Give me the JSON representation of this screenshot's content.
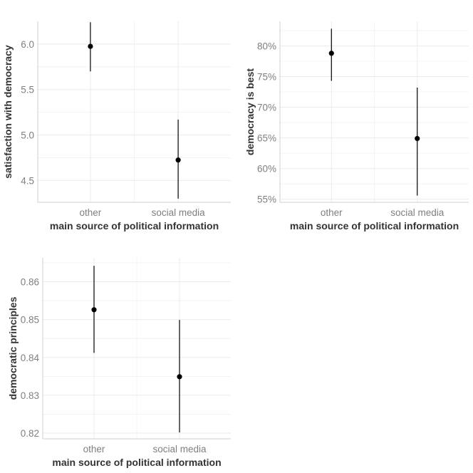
{
  "chart_data": [
    {
      "type": "scatter",
      "subtype": "pointrange",
      "categories": [
        "other",
        "social media"
      ],
      "points": [
        {
          "x": "other",
          "y": 5.975,
          "lower": 5.7,
          "upper": 6.24
        },
        {
          "x": "social media",
          "y": 4.725,
          "lower": 4.3,
          "upper": 5.17
        }
      ],
      "xlabel": "main source of political information",
      "ylabel": "satisfaction with democracy",
      "ylim": [
        4.26,
        6.25
      ],
      "yticks": [
        4.5,
        5.0,
        5.5,
        6.0
      ],
      "ytick_labels": [
        "4.5",
        "5.0",
        "5.5",
        "6.0"
      ],
      "grid": true
    },
    {
      "type": "scatter",
      "subtype": "pointrange",
      "categories": [
        "other",
        "social media"
      ],
      "points": [
        {
          "x": "other",
          "y": 0.788,
          "lower": 0.743,
          "upper": 0.828
        },
        {
          "x": "social media",
          "y": 0.649,
          "lower": 0.556,
          "upper": 0.732
        }
      ],
      "xlabel": "main source of political information",
      "ylabel": "democracy is best",
      "ylim": [
        0.545,
        0.84
      ],
      "yticks": [
        0.55,
        0.6,
        0.65,
        0.7,
        0.75,
        0.8
      ],
      "ytick_labels": [
        "55%",
        "60%",
        "65%",
        "70%",
        "75%",
        "80%"
      ],
      "grid": true
    },
    {
      "type": "scatter",
      "subtype": "pointrange",
      "categories": [
        "other",
        "social media"
      ],
      "points": [
        {
          "x": "other",
          "y": 0.8526,
          "lower": 0.8412,
          "upper": 0.8642
        },
        {
          "x": "social media",
          "y": 0.8349,
          "lower": 0.8202,
          "upper": 0.8499
        }
      ],
      "xlabel": "main source of political information",
      "ylabel": "democratic principles",
      "ylim": [
        0.8185,
        0.8663
      ],
      "yticks": [
        0.82,
        0.83,
        0.84,
        0.85,
        0.86
      ],
      "ytick_labels": [
        "0.82",
        "0.83",
        "0.84",
        "0.85",
        "0.86"
      ],
      "grid": true
    }
  ]
}
